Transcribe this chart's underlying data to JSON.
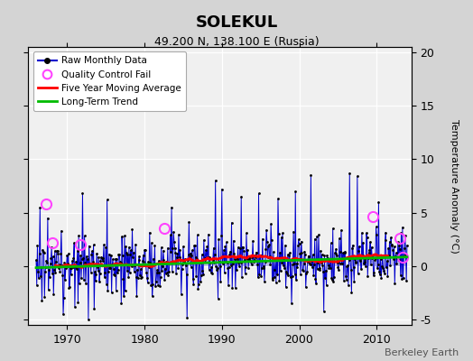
{
  "title": "SOLEKUL",
  "subtitle": "49.200 N, 138.100 E (Russia)",
  "ylabel": "Temperature Anomaly (°C)",
  "credit": "Berkeley Earth",
  "xlim": [
    1965.0,
    2014.5
  ],
  "ylim": [
    -5.5,
    20.5
  ],
  "yticks": [
    -5,
    0,
    5,
    10,
    15,
    20
  ],
  "xticks": [
    1970,
    1980,
    1990,
    2000,
    2010
  ],
  "legend_labels": [
    "Raw Monthly Data",
    "Quality Control Fail",
    "Five Year Moving Average",
    "Long-Term Trend"
  ],
  "raw_color": "#0000cc",
  "raw_fill_color": "#9999dd",
  "raw_marker_color": "#000000",
  "qc_color": "#ff44ff",
  "ma_color": "#ff0000",
  "trend_color": "#00bb00",
  "plot_bg_color": "#f0f0f0",
  "fig_bg_color": "#d4d4d4",
  "grid_color": "#ffffff",
  "title_fontsize": 13,
  "subtitle_fontsize": 9,
  "label_fontsize": 8,
  "tick_fontsize": 9,
  "credit_fontsize": 8,
  "qc_years": [
    1967.3,
    1968.1,
    1971.7,
    1982.6,
    2009.5,
    2013.0,
    2013.4
  ],
  "qc_vals": [
    5.8,
    2.2,
    2.0,
    3.5,
    4.6,
    2.6,
    0.8
  ]
}
